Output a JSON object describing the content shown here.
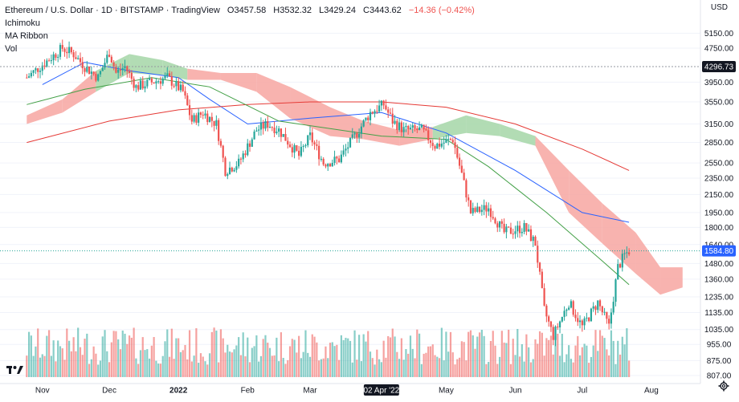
{
  "header": {
    "symbol": "Ethereum / U.S. Dollar",
    "interval": "1D",
    "exchange": "BITSTAMP",
    "source": "TradingView",
    "ohlc": {
      "open": "O3457.58",
      "high": "H3532.32",
      "low": "L3429.24",
      "close": "C3443.62",
      "change": "−14.36 (−0.42%)"
    },
    "indicators": [
      "Ichimoku",
      "MA Ribbon",
      "Vol"
    ]
  },
  "currency_label": "USD",
  "colors": {
    "up": "#26a69a",
    "down": "#ef5350",
    "cloud_bear": "#f7a6a1",
    "cloud_bull": "#a5d6a7",
    "ma_blue": "#2962ff",
    "ma_red": "#e53935",
    "ma_green": "#43a047",
    "background": "#ffffff"
  },
  "chart_data": {
    "type": "candlestick",
    "title": "Ethereum / U.S. Dollar · 1D · BITSTAMP",
    "y_scale": "log",
    "ylim": [
      800,
      5700
    ],
    "y_ticks": [
      "5150.00",
      "4750.00",
      "4296.73",
      "3950.00",
      "3550.00",
      "3150.00",
      "2850.00",
      "2550.00",
      "2350.00",
      "2150.00",
      "1950.00",
      "1800.00",
      "1640.00",
      "1584.80",
      "1480.00",
      "1360.00",
      "1235.00",
      "1135.00",
      "1035.00",
      "955.00",
      "875.00",
      "807.00"
    ],
    "x_ticks": [
      "Nov",
      "Dec",
      "2022",
      "Feb",
      "Mar",
      "02 Apr '22",
      "May",
      "Jun",
      "Jul",
      "Aug"
    ],
    "highlighted_date": "02 Apr '22",
    "horizontal_line": {
      "value": 4296.73,
      "label": "4296.73"
    },
    "last_price": {
      "value": 1584.8,
      "label": "1584.80"
    },
    "price_anchors": [
      {
        "date": "2021-10-25",
        "close": 4050
      },
      {
        "date": "2021-11-10",
        "close": 4750
      },
      {
        "date": "2021-11-15",
        "close": 4600
      },
      {
        "date": "2021-11-20",
        "close": 4300
      },
      {
        "date": "2021-11-26",
        "close": 4050
      },
      {
        "date": "2021-12-01",
        "close": 4650
      },
      {
        "date": "2021-12-04",
        "close": 4150
      },
      {
        "date": "2021-12-08",
        "close": 4300
      },
      {
        "date": "2021-12-13",
        "close": 3850
      },
      {
        "date": "2021-12-20",
        "close": 3950
      },
      {
        "date": "2021-12-27",
        "close": 4050
      },
      {
        "date": "2022-01-03",
        "close": 3750
      },
      {
        "date": "2022-01-07",
        "close": 3200
      },
      {
        "date": "2022-01-12",
        "close": 3350
      },
      {
        "date": "2022-01-18",
        "close": 3150
      },
      {
        "date": "2022-01-22",
        "close": 2450
      },
      {
        "date": "2022-01-28",
        "close": 2550
      },
      {
        "date": "2022-02-05",
        "close": 3050
      },
      {
        "date": "2022-02-10",
        "close": 3150
      },
      {
        "date": "2022-02-15",
        "close": 3050
      },
      {
        "date": "2022-02-24",
        "close": 2650
      },
      {
        "date": "2022-03-01",
        "close": 2950
      },
      {
        "date": "2022-03-07",
        "close": 2550
      },
      {
        "date": "2022-03-14",
        "close": 2600
      },
      {
        "date": "2022-03-22",
        "close": 3000
      },
      {
        "date": "2022-03-28",
        "close": 3350
      },
      {
        "date": "2022-04-03",
        "close": 3500
      },
      {
        "date": "2022-04-07",
        "close": 3200
      },
      {
        "date": "2022-04-12",
        "close": 3050
      },
      {
        "date": "2022-04-20",
        "close": 3050
      },
      {
        "date": "2022-04-26",
        "close": 2800
      },
      {
        "date": "2022-05-04",
        "close": 2900
      },
      {
        "date": "2022-05-08",
        "close": 2400
      },
      {
        "date": "2022-05-12",
        "close": 1950
      },
      {
        "date": "2022-05-20",
        "close": 2000
      },
      {
        "date": "2022-05-27",
        "close": 1750
      },
      {
        "date": "2022-06-05",
        "close": 1800
      },
      {
        "date": "2022-06-10",
        "close": 1650
      },
      {
        "date": "2022-06-14",
        "close": 1150
      },
      {
        "date": "2022-06-18",
        "close": 1000
      },
      {
        "date": "2022-06-25",
        "close": 1200
      },
      {
        "date": "2022-07-01",
        "close": 1050
      },
      {
        "date": "2022-07-08",
        "close": 1200
      },
      {
        "date": "2022-07-13",
        "close": 1050
      },
      {
        "date": "2022-07-17",
        "close": 1450
      },
      {
        "date": "2022-07-20",
        "close": 1550
      },
      {
        "date": "2022-07-22",
        "close": 1584.8
      }
    ],
    "ma_lines": [
      {
        "name": "MA blue",
        "color": "#2962ff",
        "points": [
          {
            "date": "2021-11-01",
            "value": 3900
          },
          {
            "date": "2021-11-20",
            "value": 4400
          },
          {
            "date": "2021-12-10",
            "value": 4200
          },
          {
            "date": "2022-01-01",
            "value": 4050
          },
          {
            "date": "2022-01-15",
            "value": 3600
          },
          {
            "date": "2022-02-01",
            "value": 3150
          },
          {
            "date": "2022-03-01",
            "value": 3250
          },
          {
            "date": "2022-04-02",
            "value": 3350
          },
          {
            "date": "2022-05-01",
            "value": 3000
          },
          {
            "date": "2022-06-01",
            "value": 2450
          },
          {
            "date": "2022-07-01",
            "value": 1950
          },
          {
            "date": "2022-07-22",
            "value": 1850
          }
        ]
      },
      {
        "name": "MA red",
        "color": "#e53935",
        "points": [
          {
            "date": "2021-10-25",
            "value": 2850
          },
          {
            "date": "2021-12-01",
            "value": 3200
          },
          {
            "date": "2022-01-01",
            "value": 3400
          },
          {
            "date": "2022-02-01",
            "value": 3500
          },
          {
            "date": "2022-03-01",
            "value": 3550
          },
          {
            "date": "2022-04-02",
            "value": 3550
          },
          {
            "date": "2022-05-01",
            "value": 3450
          },
          {
            "date": "2022-06-01",
            "value": 3150
          },
          {
            "date": "2022-07-01",
            "value": 2750
          },
          {
            "date": "2022-07-22",
            "value": 2450
          }
        ]
      },
      {
        "name": "MA green",
        "color": "#43a047",
        "points": [
          {
            "date": "2021-10-25",
            "value": 3500
          },
          {
            "date": "2021-11-20",
            "value": 3800
          },
          {
            "date": "2021-12-20",
            "value": 4050
          },
          {
            "date": "2022-01-15",
            "value": 3850
          },
          {
            "date": "2022-02-15",
            "value": 3200
          },
          {
            "date": "2022-04-02",
            "value": 2950
          },
          {
            "date": "2022-05-01",
            "value": 2900
          },
          {
            "date": "2022-05-20",
            "value": 2500
          },
          {
            "date": "2022-06-15",
            "value": 1950
          },
          {
            "date": "2022-07-10",
            "value": 1500
          },
          {
            "date": "2022-07-22",
            "value": 1320
          }
        ]
      }
    ],
    "cloud": [
      {
        "date": "2021-10-25",
        "top": 3300,
        "bottom": 3150
      },
      {
        "date": "2021-11-10",
        "top": 3600,
        "bottom": 3350
      },
      {
        "date": "2021-11-25",
        "top": 4200,
        "bottom": 3750
      },
      {
        "date": "2021-12-10",
        "top": 4600,
        "bottom": 4150
      },
      {
        "date": "2021-12-25",
        "top": 4450,
        "bottom": 4100
      },
      {
        "date": "2022-01-05",
        "top": 4250,
        "bottom": 4000
      },
      {
        "date": "2022-01-20",
        "top": 4150,
        "bottom": 4000
      },
      {
        "date": "2022-02-05",
        "top": 4150,
        "bottom": 3750
      },
      {
        "date": "2022-02-20",
        "top": 3850,
        "bottom": 3250
      },
      {
        "date": "2022-03-10",
        "top": 3450,
        "bottom": 2950
      },
      {
        "date": "2022-03-25",
        "top": 3200,
        "bottom": 2900
      },
      {
        "date": "2022-04-10",
        "top": 3050,
        "bottom": 2800
      },
      {
        "date": "2022-04-25",
        "top": 3100,
        "bottom": 2900
      },
      {
        "date": "2022-05-10",
        "top": 3300,
        "bottom": 3000
      },
      {
        "date": "2022-05-25",
        "top": 3150,
        "bottom": 2950
      },
      {
        "date": "2022-06-10",
        "top": 2950,
        "bottom": 2800
      },
      {
        "date": "2022-06-25",
        "top": 2450,
        "bottom": 1950
      },
      {
        "date": "2022-07-10",
        "top": 2050,
        "bottom": 1650
      },
      {
        "date": "2022-07-25",
        "top": 1750,
        "bottom": 1400
      },
      {
        "date": "2022-08-05",
        "top": 1450,
        "bottom": 1250
      },
      {
        "date": "2022-08-15",
        "top": 1450,
        "bottom": 1300
      }
    ]
  }
}
